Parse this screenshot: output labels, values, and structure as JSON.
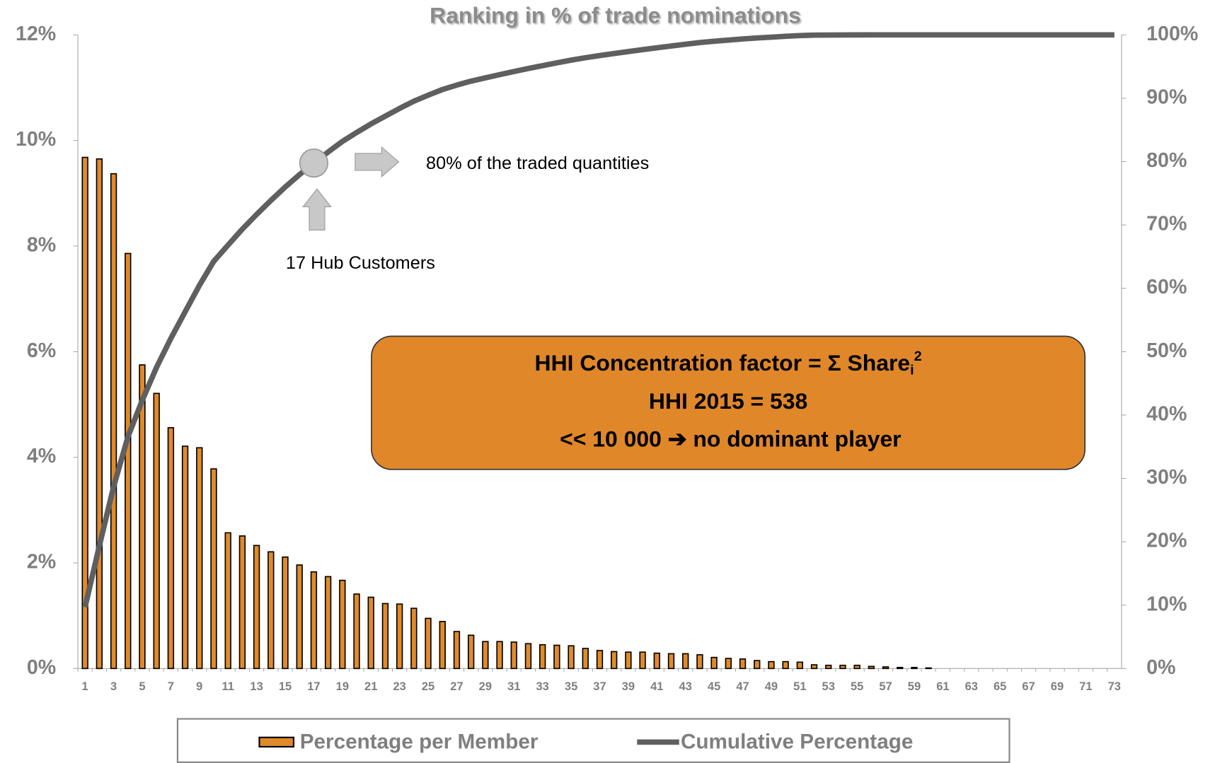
{
  "chart_data": {
    "type": "bar_line",
    "title": "Ranking in % of trade nominations",
    "categories": [
      1,
      null,
      3,
      null,
      5,
      null,
      7,
      null,
      9,
      null,
      11,
      null,
      13,
      null,
      15,
      null,
      17,
      null,
      19,
      null,
      21,
      null,
      23,
      null,
      25,
      null,
      27,
      null,
      29,
      null,
      31,
      null,
      33,
      null,
      35,
      null,
      37,
      null,
      39,
      null,
      41,
      null,
      43,
      null,
      45,
      null,
      47,
      null,
      49,
      null,
      51,
      null,
      53,
      null,
      55,
      null,
      57,
      null,
      59,
      null,
      61,
      null,
      63,
      null,
      65,
      null,
      67,
      null,
      69,
      null,
      71,
      null,
      73
    ],
    "series": [
      {
        "name": "Percentage per Member",
        "type": "bar",
        "color": "#e08a2a",
        "values": [
          9.68,
          9.65,
          9.37,
          7.86,
          5.75,
          5.21,
          4.56,
          4.21,
          4.18,
          3.78,
          2.57,
          2.51,
          2.33,
          2.21,
          2.11,
          1.96,
          1.83,
          1.74,
          1.67,
          1.41,
          1.35,
          1.23,
          1.22,
          1.14,
          0.95,
          0.89,
          0.7,
          0.63,
          0.51,
          0.51,
          0.5,
          0.47,
          0.45,
          0.44,
          0.43,
          0.38,
          0.34,
          0.32,
          0.31,
          0.31,
          0.29,
          0.28,
          0.28,
          0.26,
          0.21,
          0.19,
          0.18,
          0.15,
          0.13,
          0.13,
          0.12,
          0.07,
          0.06,
          0.06,
          0.06,
          0.04,
          0.03,
          0.02,
          0.02,
          0.01,
          0,
          0,
          0,
          0,
          0,
          0,
          0,
          0,
          0,
          0,
          0,
          0,
          0
        ]
      },
      {
        "name": "Cumulative Percentage",
        "type": "line",
        "axis": "y2",
        "color": "#5f5f5f",
        "values": [
          9.68,
          19.33,
          28.7,
          36.56,
          42.31,
          47.52,
          52.08,
          56.29,
          60.47,
          64.25,
          66.82,
          69.33,
          71.66,
          73.87,
          75.98,
          77.94,
          79.77,
          81.51,
          83.18,
          84.59,
          85.94,
          87.17,
          88.39,
          89.53,
          90.48,
          91.37,
          92.07,
          92.7,
          93.21,
          93.72,
          94.22,
          94.69,
          95.14,
          95.58,
          96.01,
          96.39,
          96.73,
          97.05,
          97.36,
          97.67,
          97.96,
          98.24,
          98.52,
          98.78,
          98.99,
          99.18,
          99.36,
          99.51,
          99.64,
          99.77,
          99.89,
          99.96,
          99.97,
          99.98,
          99.99,
          100,
          100,
          100,
          100,
          100,
          100,
          100,
          100,
          100,
          100,
          100,
          100,
          100,
          100,
          100,
          100,
          100,
          100
        ]
      }
    ],
    "ylim": [
      0,
      12
    ],
    "yticks": [
      {
        "value": 0,
        "label": "0%"
      },
      {
        "value": 2,
        "label": "2%"
      },
      {
        "value": 4,
        "label": "4%"
      },
      {
        "value": 6,
        "label": "6%"
      },
      {
        "value": 8,
        "label": "8%"
      },
      {
        "value": 10,
        "label": "10%"
      },
      {
        "value": 12,
        "label": "12%"
      }
    ],
    "y2lim": [
      0,
      100
    ],
    "y2ticks": [
      {
        "value": 0,
        "label": "0%"
      },
      {
        "value": 10,
        "label": "10%"
      },
      {
        "value": 20,
        "label": "20%"
      },
      {
        "value": 30,
        "label": "30%"
      },
      {
        "value": 40,
        "label": "40%"
      },
      {
        "value": 50,
        "label": "50%"
      },
      {
        "value": 60,
        "label": "60%"
      },
      {
        "value": 70,
        "label": "70%"
      },
      {
        "value": 80,
        "label": "80%"
      },
      {
        "value": 90,
        "label": "90%"
      },
      {
        "value": 100,
        "label": "100%"
      }
    ],
    "annotations": {
      "arrow_right": "80% of the traded quantities",
      "arrow_up": "17 Hub Customers",
      "highlight_category": 17
    },
    "box": {
      "line1": {
        "text": "HHI Concentration factor = Σ Share",
        "sub": "i",
        "sup": "2"
      },
      "line2": "HHI 2015 =  538",
      "line3": "<< 10 000  ➔  no dominant player"
    },
    "legend": "bottom"
  }
}
